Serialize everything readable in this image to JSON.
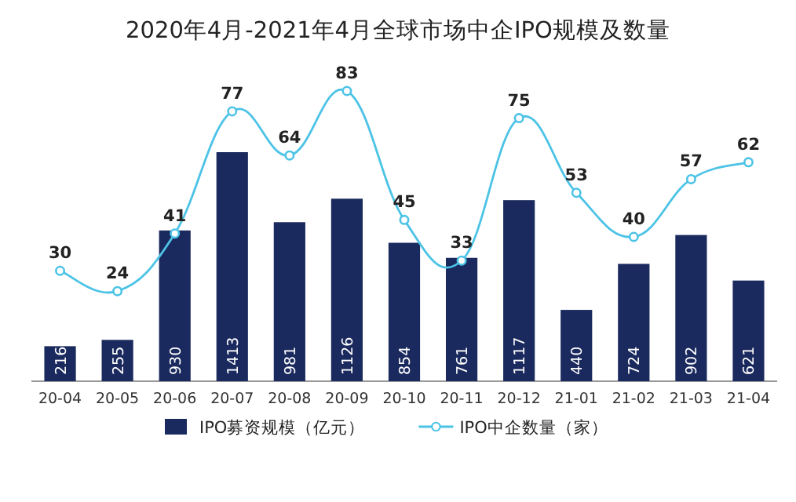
{
  "chart_data": {
    "type": "bar",
    "title": "2020年4月-2021年4月全球市场中企IPO规模及数量",
    "categories": [
      "20-04",
      "20-05",
      "20-06",
      "20-07",
      "20-08",
      "20-09",
      "20-10",
      "20-11",
      "20-12",
      "21-01",
      "21-02",
      "21-03",
      "21-04"
    ],
    "series": [
      {
        "name": "IPO募资规模（亿元）",
        "type": "bar",
        "color": "#1b2a5e",
        "values": [
          216,
          255,
          930,
          1413,
          981,
          1126,
          854,
          761,
          1117,
          440,
          724,
          902,
          621
        ]
      },
      {
        "name": "IPO中企数量（家）",
        "type": "line",
        "axis": "y2",
        "color": "#4cc3e6",
        "values": [
          30,
          24,
          41,
          77,
          64,
          83,
          45,
          33,
          75,
          53,
          40,
          57,
          62
        ]
      }
    ],
    "data_labels": true,
    "legend": "bottom",
    "marker": "circle",
    "grid": false
  }
}
